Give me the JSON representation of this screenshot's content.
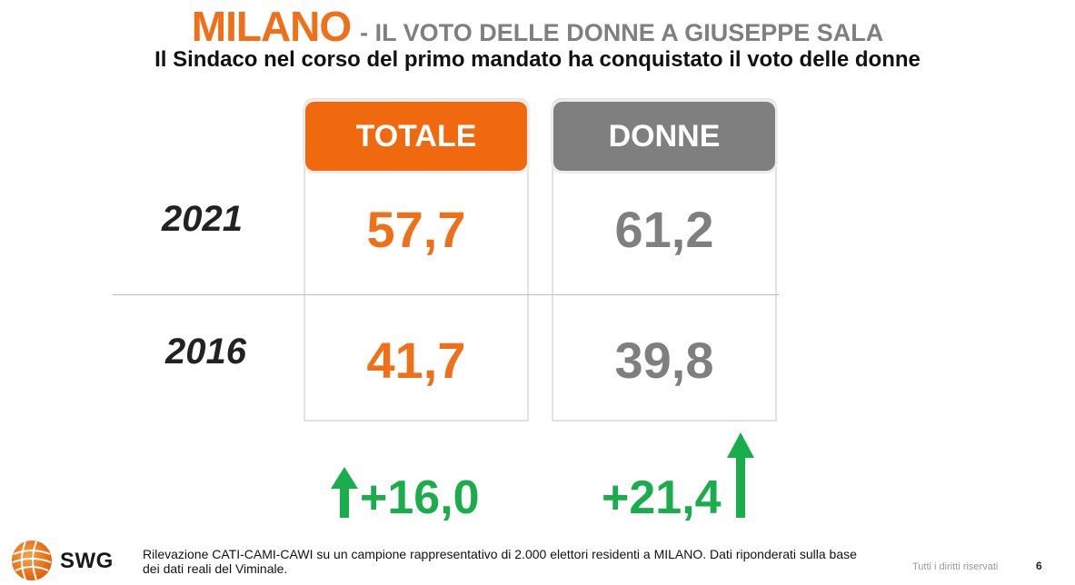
{
  "header": {
    "title": "MILANO",
    "title_suffix": "- IL VOTO DELLE DONNE A GIUSEPPE SALA",
    "subtitle": "Il Sindaco nel corso del primo mandato ha conquistato il voto delle donne"
  },
  "chart_data": {
    "type": "table",
    "columns": [
      "TOTALE",
      "DONNE"
    ],
    "rows": [
      {
        "label": "2021",
        "values": [
          "57,7",
          "61,2"
        ]
      },
      {
        "label": "2016",
        "values": [
          "41,7",
          "39,8"
        ]
      }
    ],
    "changes": [
      "+16,0",
      "+21,4"
    ],
    "change_direction": "up"
  },
  "colors": {
    "totale": "#f0690e",
    "donne": "#7f7f7f",
    "increase": "#1aad4b"
  },
  "footer": {
    "logo_text": "SWG",
    "logo_icon": "globe-icon",
    "note": "Rilevazione CATI-CAMI-CAWI su un campione rappresentativo di 2.000 elettori residenti a MILANO. Dati riponderati sulla base dei dati reali del Viminale.",
    "rights": "Tutti i diritti riservati",
    "page": "6"
  }
}
